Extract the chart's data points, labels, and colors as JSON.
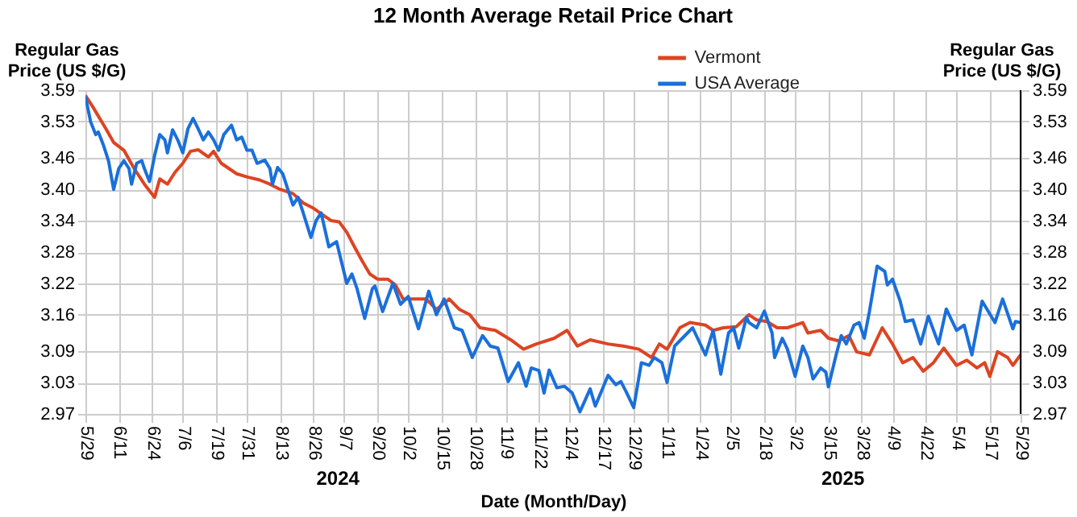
{
  "chart_data": {
    "type": "line",
    "title": "12 Month Average Retail Price Chart",
    "xlabel": "Date (Month/Day)",
    "ylabel": "Regular Gas\nPrice (US $/G)",
    "y2label": "Regular Gas\nPrice (US $/G)",
    "annotations": [
      "2024",
      "2025"
    ],
    "xlim": [
      "2024-05-29",
      "2025-05-29"
    ],
    "xticks": [
      {
        "value": "2024-05-29",
        "label": "5/29"
      },
      {
        "value": "2024-06-11",
        "label": "6/11"
      },
      {
        "value": "2024-06-24",
        "label": "6/24"
      },
      {
        "value": "2024-07-06",
        "label": "7/6"
      },
      {
        "value": "2024-07-19",
        "label": "7/19"
      },
      {
        "value": "2024-07-31",
        "label": "7/31"
      },
      {
        "value": "2024-08-13",
        "label": "8/13"
      },
      {
        "value": "2024-08-26",
        "label": "8/26"
      },
      {
        "value": "2024-09-07",
        "label": "9/7"
      },
      {
        "value": "2024-09-20",
        "label": "9/20"
      },
      {
        "value": "2024-10-02",
        "label": "10/2"
      },
      {
        "value": "2024-10-15",
        "label": "10/15"
      },
      {
        "value": "2024-10-28",
        "label": "10/28"
      },
      {
        "value": "2024-11-09",
        "label": "11/9"
      },
      {
        "value": "2024-11-22",
        "label": "11/22"
      },
      {
        "value": "2024-12-04",
        "label": "12/4"
      },
      {
        "value": "2024-12-17",
        "label": "12/17"
      },
      {
        "value": "2024-12-29",
        "label": "12/29"
      },
      {
        "value": "2025-01-11",
        "label": "1/11"
      },
      {
        "value": "2025-01-24",
        "label": "1/24"
      },
      {
        "value": "2025-02-05",
        "label": "2/5"
      },
      {
        "value": "2025-02-18",
        "label": "2/18"
      },
      {
        "value": "2025-03-02",
        "label": "3/2"
      },
      {
        "value": "2025-03-15",
        "label": "3/15"
      },
      {
        "value": "2025-03-28",
        "label": "3/28"
      },
      {
        "value": "2025-04-09",
        "label": "4/9"
      },
      {
        "value": "2025-04-22",
        "label": "4/22"
      },
      {
        "value": "2025-05-04",
        "label": "5/4"
      },
      {
        "value": "2025-05-17",
        "label": "5/17"
      },
      {
        "value": "2025-05-29",
        "label": "5/29"
      }
    ],
    "ylim": [
      2.97,
      3.59
    ],
    "yticks": [
      2.97,
      3.03,
      3.09,
      3.16,
      3.22,
      3.28,
      3.34,
      {
        "value": 3.4,
        "label": "3.40"
      },
      3.46,
      3.53,
      3.59
    ],
    "y2lim": [
      2.97,
      3.59
    ],
    "y2ticks": [
      2.97,
      3.03,
      3.09,
      3.16,
      3.22,
      3.28,
      3.34,
      {
        "value": 3.4,
        "label": "3.40"
      },
      3.46,
      3.53,
      3.59
    ],
    "grid": true,
    "legend": "top right",
    "marker": "none",
    "line_style": "solid",
    "series": [
      {
        "name": "Vermont",
        "color": "#dd4422",
        "x": [
          "2024-05-29",
          "2024-06-01",
          "2024-06-06",
          "2024-06-09",
          "2024-06-13",
          "2024-06-17",
          "2024-06-21",
          "2024-06-25",
          "2024-06-27",
          "2024-06-30",
          "2024-07-03",
          "2024-07-06",
          "2024-07-09",
          "2024-07-12",
          "2024-07-16",
          "2024-07-18",
          "2024-07-21",
          "2024-07-24",
          "2024-07-27",
          "2024-07-31",
          "2024-08-05",
          "2024-08-09",
          "2024-08-13",
          "2024-08-18",
          "2024-08-22",
          "2024-08-26",
          "2024-08-30",
          "2024-09-02",
          "2024-09-05",
          "2024-09-08",
          "2024-09-11",
          "2024-09-14",
          "2024-09-17",
          "2024-09-20",
          "2024-09-24",
          "2024-09-27",
          "2024-09-30",
          "2024-10-04",
          "2024-10-09",
          "2024-10-13",
          "2024-10-18",
          "2024-10-22",
          "2024-10-26",
          "2024-10-30",
          "2024-11-05",
          "2024-11-11",
          "2024-11-16",
          "2024-11-21",
          "2024-11-28",
          "2024-12-03",
          "2024-12-07",
          "2024-12-12",
          "2024-12-19",
          "2024-12-25",
          "2024-12-31",
          "2025-01-05",
          "2025-01-08",
          "2025-01-11",
          "2025-01-16",
          "2025-01-20",
          "2025-01-26",
          "2025-01-29",
          "2025-02-02",
          "2025-02-07",
          "2025-02-12",
          "2025-02-15",
          "2025-02-19",
          "2025-02-23",
          "2025-02-27",
          "2025-03-05",
          "2025-03-07",
          "2025-03-12",
          "2025-03-15",
          "2025-03-19",
          "2025-03-23",
          "2025-03-26",
          "2025-03-31",
          "2025-04-05",
          "2025-04-09",
          "2025-04-13",
          "2025-04-17",
          "2025-04-21",
          "2025-04-25",
          "2025-04-29",
          "2025-05-04",
          "2025-05-08",
          "2025-05-12",
          "2025-05-15",
          "2025-05-17",
          "2025-05-20",
          "2025-05-24",
          "2025-05-26",
          "2025-05-29"
        ],
        "values": [
          3.58,
          3.557,
          3.516,
          3.49,
          3.475,
          3.44,
          3.41,
          3.385,
          3.42,
          3.41,
          3.433,
          3.45,
          3.473,
          3.476,
          3.462,
          3.473,
          3.45,
          3.44,
          3.43,
          3.424,
          3.418,
          3.41,
          3.4,
          3.392,
          3.374,
          3.364,
          3.35,
          3.34,
          3.338,
          3.318,
          3.29,
          3.263,
          3.238,
          3.228,
          3.228,
          3.217,
          3.19,
          3.19,
          3.19,
          3.17,
          3.19,
          3.17,
          3.16,
          3.135,
          3.13,
          3.112,
          3.094,
          3.104,
          3.115,
          3.13,
          3.1,
          3.112,
          3.104,
          3.1,
          3.094,
          3.078,
          3.104,
          3.094,
          3.135,
          3.145,
          3.14,
          3.13,
          3.135,
          3.137,
          3.16,
          3.15,
          3.147,
          3.135,
          3.135,
          3.145,
          3.125,
          3.13,
          3.115,
          3.11,
          3.12,
          3.089,
          3.083,
          3.135,
          3.104,
          3.068,
          3.078,
          3.052,
          3.068,
          3.096,
          3.063,
          3.073,
          3.058,
          3.068,
          3.042,
          3.089,
          3.078,
          3.063,
          3.083
        ]
      },
      {
        "name": "USA Average",
        "color": "#1a6fdb",
        "x": [
          "2024-05-29",
          "2024-05-31",
          "2024-06-02",
          "2024-06-03",
          "2024-06-05",
          "2024-06-07",
          "2024-06-09",
          "2024-06-11",
          "2024-06-13",
          "2024-06-15",
          "2024-06-16",
          "2024-06-18",
          "2024-06-20",
          "2024-06-21",
          "2024-06-23",
          "2024-06-25",
          "2024-06-27",
          "2024-06-29",
          "2024-06-30",
          "2024-07-02",
          "2024-07-04",
          "2024-07-06",
          "2024-07-08",
          "2024-07-10",
          "2024-07-12",
          "2024-07-14",
          "2024-07-16",
          "2024-07-18",
          "2024-07-20",
          "2024-07-22",
          "2024-07-25",
          "2024-07-27",
          "2024-07-29",
          "2024-07-31",
          "2024-08-02",
          "2024-08-04",
          "2024-08-07",
          "2024-08-09",
          "2024-08-10",
          "2024-08-12",
          "2024-08-14",
          "2024-08-16",
          "2024-08-18",
          "2024-08-20",
          "2024-08-22",
          "2024-08-25",
          "2024-08-27",
          "2024-08-29",
          "2024-09-01",
          "2024-09-04",
          "2024-09-06",
          "2024-09-08",
          "2024-09-10",
          "2024-09-12",
          "2024-09-15",
          "2024-09-18",
          "2024-09-19",
          "2024-09-22",
          "2024-09-26",
          "2024-09-29",
          "2024-10-02",
          "2024-10-06",
          "2024-10-10",
          "2024-10-13",
          "2024-10-16",
          "2024-10-20",
          "2024-10-23",
          "2024-10-27",
          "2024-10-31",
          "2024-11-03",
          "2024-11-06",
          "2024-11-10",
          "2024-11-14",
          "2024-11-17",
          "2024-11-19",
          "2024-11-22",
          "2024-11-24",
          "2024-11-26",
          "2024-11-29",
          "2024-12-02",
          "2024-12-05",
          "2024-12-08",
          "2024-12-12",
          "2024-12-14",
          "2024-12-19",
          "2024-12-22",
          "2024-12-24",
          "2024-12-26",
          "2024-12-29",
          "2025-01-01",
          "2025-01-04",
          "2025-01-06",
          "2025-01-09",
          "2025-01-11",
          "2025-01-14",
          "2025-01-21",
          "2025-01-26",
          "2025-01-29",
          "2025-02-01",
          "2025-02-04",
          "2025-02-06",
          "2025-02-08",
          "2025-02-11",
          "2025-02-12",
          "2025-02-15",
          "2025-02-18",
          "2025-02-21",
          "2025-02-22",
          "2025-02-25",
          "2025-02-27",
          "2025-03-02",
          "2025-03-05",
          "2025-03-07",
          "2025-03-09",
          "2025-03-12",
          "2025-03-14",
          "2025-03-15",
          "2025-03-18",
          "2025-03-20",
          "2025-03-22",
          "2025-03-25",
          "2025-03-27",
          "2025-03-29",
          "2025-03-31",
          "2025-04-03",
          "2025-04-06",
          "2025-04-07",
          "2025-04-09",
          "2025-04-12",
          "2025-04-14",
          "2025-04-17",
          "2025-04-20",
          "2025-04-23",
          "2025-04-27",
          "2025-04-30",
          "2025-05-04",
          "2025-05-07",
          "2025-05-10",
          "2025-05-14",
          "2025-05-19",
          "2025-05-22",
          "2025-05-26",
          "2025-05-27",
          "2025-05-29"
        ],
        "values": [
          3.578,
          3.53,
          3.505,
          3.51,
          3.485,
          3.455,
          3.4,
          3.44,
          3.455,
          3.44,
          3.41,
          3.45,
          3.455,
          3.44,
          3.415,
          3.465,
          3.505,
          3.495,
          3.47,
          3.514,
          3.495,
          3.47,
          3.516,
          3.536,
          3.516,
          3.495,
          3.51,
          3.495,
          3.475,
          3.505,
          3.523,
          3.495,
          3.5,
          3.475,
          3.475,
          3.45,
          3.456,
          3.44,
          3.41,
          3.442,
          3.43,
          3.4,
          3.37,
          3.385,
          3.355,
          3.308,
          3.34,
          3.355,
          3.29,
          3.3,
          3.26,
          3.22,
          3.238,
          3.21,
          3.153,
          3.21,
          3.215,
          3.166,
          3.22,
          3.18,
          3.195,
          3.133,
          3.205,
          3.16,
          3.19,
          3.135,
          3.13,
          3.078,
          3.12,
          3.1,
          3.096,
          3.032,
          3.068,
          3.023,
          3.058,
          3.053,
          3.01,
          3.054,
          3.02,
          3.023,
          3.01,
          2.974,
          3.018,
          2.985,
          3.044,
          3.026,
          3.032,
          3.013,
          2.982,
          3.068,
          3.063,
          3.078,
          3.068,
          3.03,
          3.1,
          3.135,
          3.083,
          3.13,
          3.046,
          3.125,
          3.135,
          3.096,
          3.155,
          3.145,
          3.135,
          3.167,
          3.125,
          3.078,
          3.115,
          3.094,
          3.042,
          3.1,
          3.078,
          3.037,
          3.058,
          3.05,
          3.022,
          3.083,
          3.12,
          3.104,
          3.14,
          3.145,
          3.115,
          3.166,
          3.253,
          3.243,
          3.217,
          3.228,
          3.186,
          3.147,
          3.15,
          3.104,
          3.157,
          3.104,
          3.171,
          3.13,
          3.14,
          3.083,
          3.186,
          3.145,
          3.19,
          3.133,
          3.147,
          3.145
        ]
      }
    ]
  }
}
